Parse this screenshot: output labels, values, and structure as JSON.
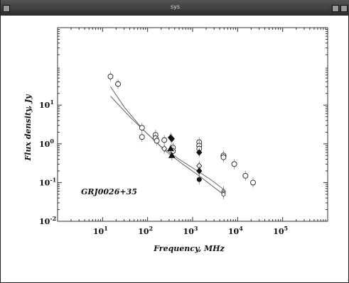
{
  "window": {
    "title": "sys"
  },
  "chart_data": {
    "type": "scatter",
    "title": "",
    "xlabel": "Frequency, MHz",
    "ylabel": "Flux density, Jy",
    "xscale": "log",
    "yscale": "log",
    "xlim": [
      1,
      1000000
    ],
    "ylim": [
      0.01,
      1000
    ],
    "grid": false,
    "legend": "none",
    "annotation": "GRJ0026+35",
    "x_ticks": [
      {
        "value": 10,
        "base": "10",
        "exp": "1"
      },
      {
        "value": 100,
        "base": "10",
        "exp": "2"
      },
      {
        "value": 1000,
        "base": "10",
        "exp": "3"
      },
      {
        "value": 10000,
        "base": "10",
        "exp": "4"
      },
      {
        "value": 100000,
        "base": "10",
        "exp": "5"
      }
    ],
    "y_ticks": [
      {
        "value": 0.01,
        "base": "10",
        "exp": "-2"
      },
      {
        "value": 0.1,
        "base": "10",
        "exp": "-1"
      },
      {
        "value": 1,
        "base": "10",
        "exp": "0"
      },
      {
        "value": 10,
        "base": "10",
        "exp": "1"
      }
    ],
    "series": [
      {
        "marker": "circle-open",
        "x": [
          15,
          22,
          75,
          75,
          150,
          150,
          160,
          235,
          365,
          365,
          1400,
          1400,
          1400,
          4850,
          4850,
          8400,
          14900,
          22000
        ],
        "y": [
          55,
          35,
          2.6,
          1.5,
          1.7,
          1.4,
          1.2,
          1.25,
          0.8,
          0.65,
          1.1,
          0.9,
          0.75,
          0.5,
          0.45,
          0.3,
          0.15,
          0.1
        ]
      },
      {
        "marker": "diamond-open",
        "x": [
          235,
          1400
        ],
        "y": [
          0.75,
          0.27
        ]
      },
      {
        "marker": "diamond-filled",
        "x": [
          325,
          345,
          1400,
          1400
        ],
        "y": [
          1.45,
          1.35,
          0.6,
          0.2
        ]
      },
      {
        "marker": "triangle-filled",
        "x": [
          325,
          345
        ],
        "y": [
          0.75,
          0.5
        ]
      },
      {
        "marker": "circle-filled",
        "x": [
          1400
        ],
        "y": [
          0.12
        ]
      },
      {
        "marker": "circle-open-small",
        "x": [
          4850,
          4850,
          4850
        ],
        "y": [
          0.06,
          0.055,
          0.05
        ]
      }
    ],
    "fits": [
      {
        "x": [
          15,
          30,
          80,
          200,
          500,
          1200,
          2500,
          5000
        ],
        "y": [
          30,
          9,
          2.3,
          0.85,
          0.4,
          0.21,
          0.12,
          0.065
        ]
      },
      {
        "x": [
          15,
          40,
          100,
          250,
          600,
          1500,
          3000,
          5000
        ],
        "y": [
          17,
          5,
          1.8,
          0.65,
          0.3,
          0.14,
          0.075,
          0.048
        ]
      }
    ]
  }
}
